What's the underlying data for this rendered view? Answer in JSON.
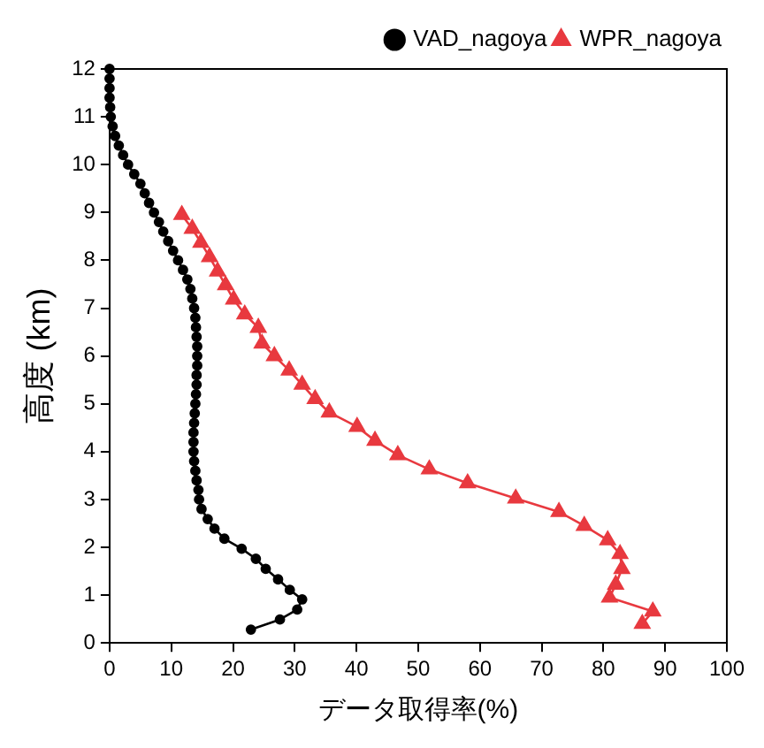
{
  "chart_data": {
    "type": "line",
    "xlabel": "データ取得率(%)",
    "ylabel": "高度 (km)",
    "xlim": [
      0,
      100
    ],
    "xticks": [
      0,
      10,
      20,
      30,
      40,
      50,
      60,
      70,
      80,
      90,
      100
    ],
    "ylim": [
      0,
      12
    ],
    "yticks": [
      0,
      1,
      2,
      3,
      4,
      5,
      6,
      7,
      8,
      9,
      10,
      11,
      12
    ],
    "grid": false,
    "legend": "top right",
    "line_style": "solid",
    "series": [
      {
        "name": "VAD_nagoya",
        "color": "#000000",
        "marker": "circle",
        "x": [
          22.9,
          27.6,
          30.4,
          31.2,
          29.2,
          27.3,
          25.3,
          23.7,
          21.4,
          18.6,
          17.0,
          15.9,
          14.9,
          14.5,
          14.4,
          14.1,
          13.9,
          13.7,
          13.6,
          13.6,
          13.6,
          13.7,
          13.8,
          13.9,
          14.0,
          14.1,
          14.1,
          14.2,
          14.2,
          14.2,
          14.1,
          14.0,
          13.9,
          13.7,
          13.4,
          13.1,
          12.6,
          11.9,
          11.1,
          10.3,
          9.5,
          8.7,
          8.0,
          7.2,
          6.4,
          5.7,
          5.0,
          4.0,
          3.0,
          2.2,
          1.5,
          0.9,
          0.5,
          0.2,
          0.1,
          0.0,
          0.0,
          0.0,
          0.0
        ],
        "values": [
          0.28,
          0.49,
          0.7,
          0.91,
          1.11,
          1.33,
          1.55,
          1.76,
          1.97,
          2.18,
          2.39,
          2.59,
          2.8,
          3.0,
          3.2,
          3.4,
          3.6,
          3.8,
          4.0,
          4.2,
          4.4,
          4.6,
          4.8,
          5.0,
          5.2,
          5.4,
          5.6,
          5.8,
          6.0,
          6.2,
          6.4,
          6.6,
          6.8,
          7.0,
          7.2,
          7.4,
          7.6,
          7.8,
          8.0,
          8.2,
          8.4,
          8.6,
          8.8,
          9.0,
          9.2,
          9.4,
          9.6,
          9.8,
          10.0,
          10.2,
          10.4,
          10.6,
          10.8,
          11.0,
          11.2,
          11.4,
          11.6,
          11.8,
          12.0
        ]
      },
      {
        "name": "WPR_nagoya",
        "color": "#e8393f",
        "marker": "triangle",
        "x": [
          86.3,
          88.0,
          81.0,
          82.0,
          83.0,
          82.7,
          80.7,
          76.9,
          72.8,
          65.8,
          58.0,
          51.8,
          46.7,
          43.0,
          40.1,
          35.6,
          33.3,
          31.2,
          29.1,
          26.7,
          24.7,
          24.1,
          21.9,
          20.1,
          18.8,
          17.5,
          16.2,
          14.8,
          13.4,
          11.7
        ],
        "values": [
          0.4,
          0.66,
          0.95,
          1.22,
          1.55,
          1.86,
          2.15,
          2.45,
          2.74,
          3.02,
          3.34,
          3.63,
          3.93,
          4.23,
          4.52,
          4.82,
          5.1,
          5.4,
          5.7,
          6.0,
          6.26,
          6.59,
          6.87,
          7.18,
          7.48,
          7.77,
          8.07,
          8.37,
          8.66,
          8.95
        ]
      }
    ]
  }
}
